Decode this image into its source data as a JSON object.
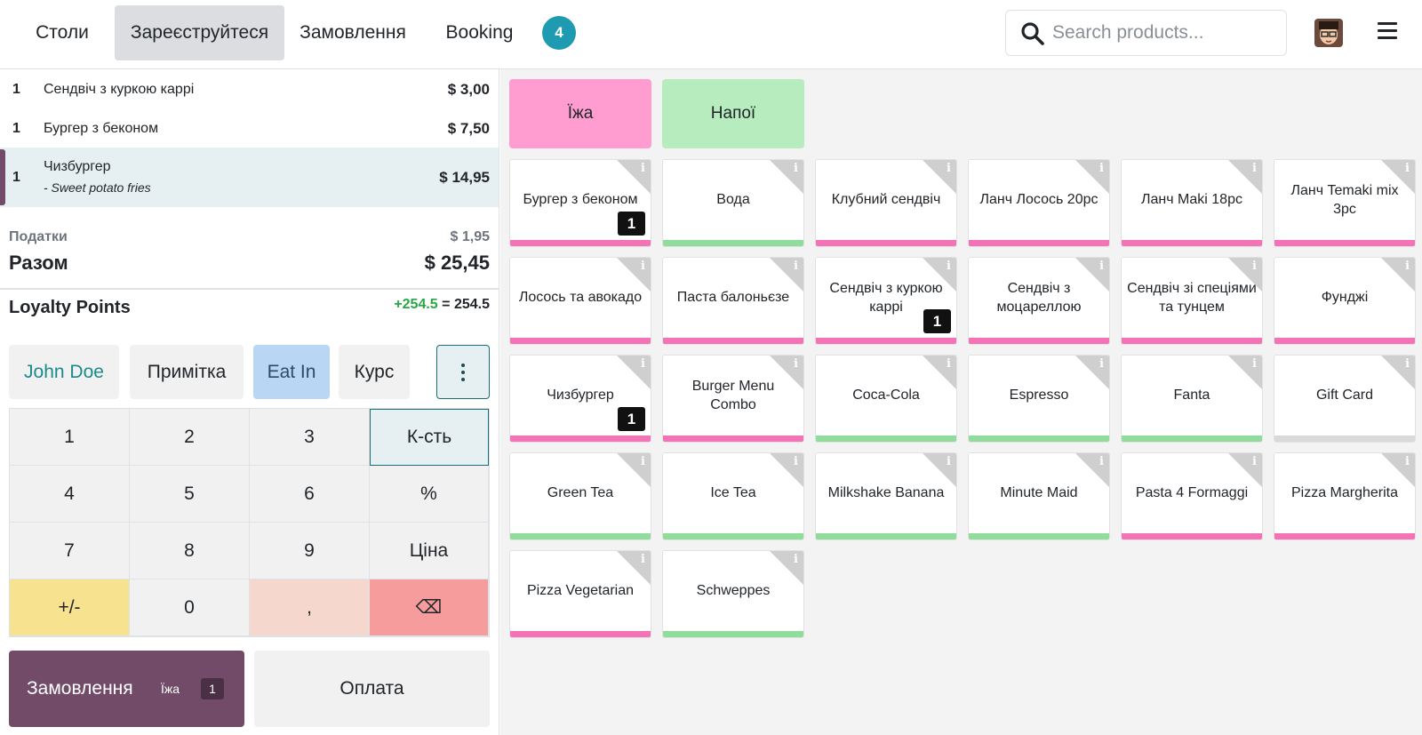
{
  "header": {
    "tabs": [
      {
        "label": "Столи",
        "active": false
      },
      {
        "label": "Зареєструйтеся",
        "active": true
      },
      {
        "label": "Замовлення",
        "active": false
      },
      {
        "label": "Booking",
        "active": false
      }
    ],
    "badge_count": "4",
    "search": {
      "placeholder": "Search products..."
    }
  },
  "order": {
    "lines": [
      {
        "qty": "1",
        "name": "Сендвіч з куркою каррі",
        "price": "$ 3,00"
      },
      {
        "qty": "1",
        "name": "Бургер з беконом",
        "price": "$ 7,50"
      },
      {
        "qty": "1",
        "name": "Чизбургер",
        "note": "- Sweet potato fries",
        "price": "$ 14,95",
        "selected": true
      }
    ],
    "tax_label": "Податки",
    "tax_value": "$ 1,95",
    "total_label": "Разом",
    "total_value": "$ 25,45",
    "loyalty_label": "Loyalty Points",
    "loyalty_plus": "+254.5",
    "loyalty_eq": "=",
    "loyalty_total": "254.5"
  },
  "controls": {
    "customer": "John Doe",
    "note": "Примітка",
    "eat_in": "Eat In",
    "course": "Курс"
  },
  "numpad": {
    "keys": [
      "1",
      "2",
      "3",
      "К-сть",
      "4",
      "5",
      "6",
      "%",
      "7",
      "8",
      "9",
      "Ціна",
      "+/-",
      "0",
      ",",
      "⌫"
    ]
  },
  "actions": {
    "order_label": "Замовлення",
    "order_category": "Їжа",
    "order_count": "1",
    "pay_label": "Оплата"
  },
  "categories": [
    {
      "label": "Їжа",
      "color": "#ff9dd0"
    },
    {
      "label": "Напої",
      "color": "#b6ecbe"
    }
  ],
  "colors": {
    "food": "#f472b6",
    "drink": "#8fdc9b",
    "other": "#d9d9d9",
    "accent": "#714b67"
  },
  "products": [
    {
      "name": "Бургер з беконом",
      "type": "food",
      "qty": "1"
    },
    {
      "name": "Вода",
      "type": "drink"
    },
    {
      "name": "Клубний сендвіч",
      "type": "food"
    },
    {
      "name": "Ланч Лосось 20pc",
      "type": "food"
    },
    {
      "name": "Ланч Maki 18pc",
      "type": "food"
    },
    {
      "name": "Ланч Temaki mix 3pc",
      "type": "food"
    },
    {
      "name": "Лосось та авокадо",
      "type": "food"
    },
    {
      "name": "Паста балоньєзе",
      "type": "food"
    },
    {
      "name": "Сендвіч з куркою каррі",
      "type": "food",
      "qty": "1"
    },
    {
      "name": "Сендвіч з моцареллою",
      "type": "food"
    },
    {
      "name": "Сендвіч зі спеціями та тунцем",
      "type": "food"
    },
    {
      "name": "Фунджі",
      "type": "food"
    },
    {
      "name": "Чизбургер",
      "type": "food",
      "qty": "1"
    },
    {
      "name": "Burger Menu Combo",
      "type": "food"
    },
    {
      "name": "Coca-Cola",
      "type": "drink"
    },
    {
      "name": "Espresso",
      "type": "drink"
    },
    {
      "name": "Fanta",
      "type": "drink"
    },
    {
      "name": "Gift Card",
      "type": "other"
    },
    {
      "name": "Green Tea",
      "type": "drink"
    },
    {
      "name": "Ice Tea",
      "type": "drink"
    },
    {
      "name": "Milkshake Banana",
      "type": "drink"
    },
    {
      "name": "Minute Maid",
      "type": "drink"
    },
    {
      "name": "Pasta 4 Formaggi",
      "type": "food"
    },
    {
      "name": "Pizza Margherita",
      "type": "food"
    },
    {
      "name": "Pizza Vegetarian",
      "type": "food"
    },
    {
      "name": "Schweppes",
      "type": "drink"
    }
  ]
}
